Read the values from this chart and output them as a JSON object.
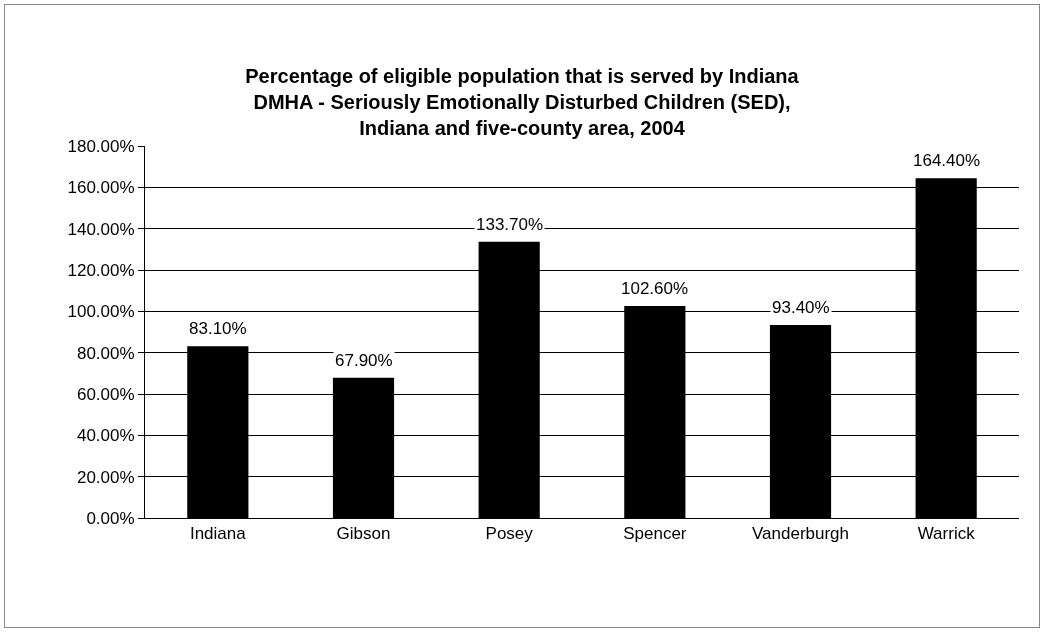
{
  "chart_data": {
    "type": "bar",
    "title": "Percentage of eligible population that is served by Indiana\nDMHA - Seriously Emotionally Disturbed Children (SED),\nIndiana and five-county area, 2004",
    "categories": [
      "Indiana",
      "Gibson",
      "Posey",
      "Spencer",
      "Vanderburgh",
      "Warrick"
    ],
    "values": [
      83.1,
      67.9,
      133.7,
      102.6,
      93.4,
      164.4
    ],
    "value_labels": [
      "83.10%",
      "67.90%",
      "133.70%",
      "102.60%",
      "93.40%",
      "164.40%"
    ],
    "color": "#000000",
    "ylim": [
      0,
      180
    ],
    "yticks": [
      {
        "value": 0,
        "label": "0.00%"
      },
      {
        "value": 20,
        "label": "20.00%"
      },
      {
        "value": 40,
        "label": "40.00%"
      },
      {
        "value": 60,
        "label": "60.00%"
      },
      {
        "value": 80,
        "label": "80.00%"
      },
      {
        "value": 100,
        "label": "100.00%"
      },
      {
        "value": 120,
        "label": "120.00%"
      },
      {
        "value": 140,
        "label": "140.00%"
      },
      {
        "value": 160,
        "label": "160.00%"
      },
      {
        "value": 180,
        "label": "180.00%"
      }
    ],
    "grid": "y"
  }
}
